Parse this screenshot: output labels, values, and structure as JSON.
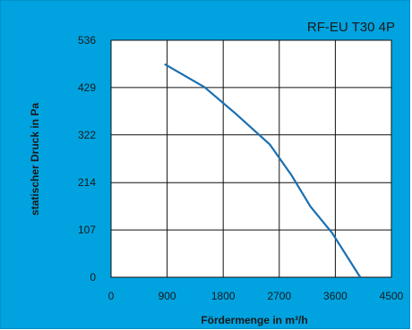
{
  "chart_data": {
    "type": "line",
    "title": "RF-EU T30 4P",
    "xlabel": "Fördermenge in m³/h",
    "ylabel": "statischer Druck in Pa",
    "xlim": [
      0,
      4500
    ],
    "ylim": [
      0,
      536
    ],
    "x_ticks": [
      "0",
      "900",
      "1800",
      "2700",
      "3600",
      "4500"
    ],
    "y_ticks": [
      "0",
      "107",
      "214",
      "322",
      "429",
      "536"
    ],
    "grid": true,
    "series": [
      {
        "x": [
          860,
          1500,
          2000,
          2550,
          2900,
          3200,
          3550,
          4000
        ],
        "y": [
          482,
          430,
          370,
          300,
          230,
          160,
          100,
          0
        ]
      }
    ]
  },
  "colors": {
    "background": "#00a3e0",
    "plot_area": "#ffffff",
    "grid": "#111111",
    "line": "#1a6fb0"
  }
}
